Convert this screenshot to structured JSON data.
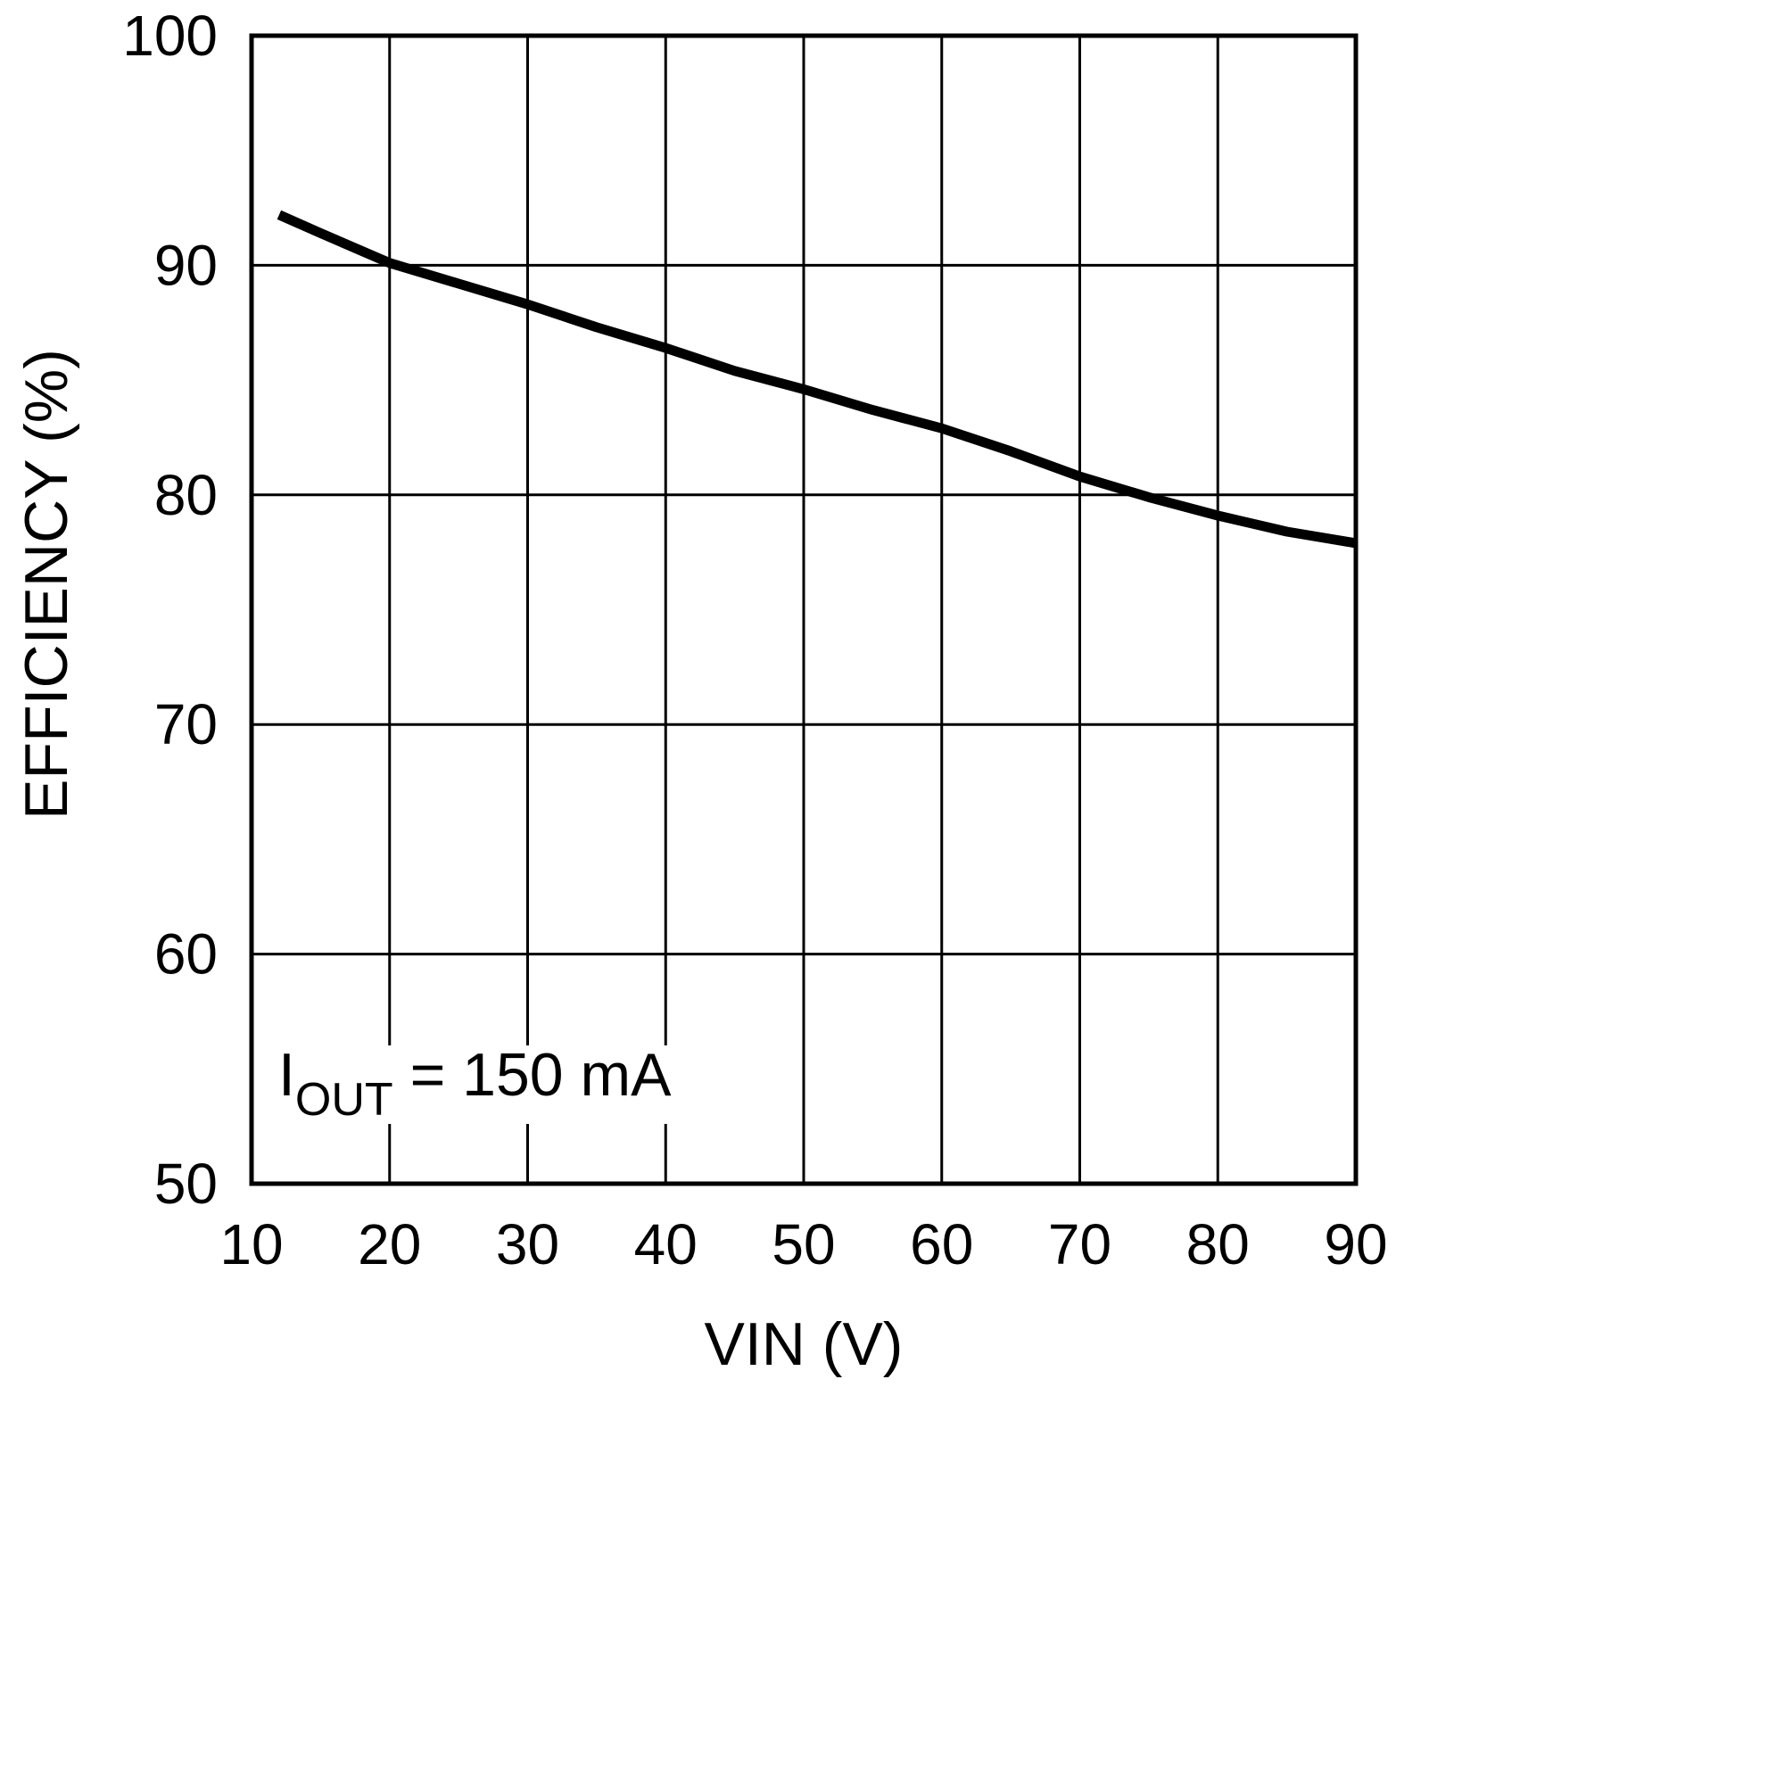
{
  "chart_data": {
    "type": "line",
    "title": "",
    "xlabel": "VIN (V)",
    "ylabel": "EFFICIENCY (%)",
    "xlim": [
      10,
      90
    ],
    "ylim": [
      50,
      100
    ],
    "xticks": [
      "10",
      "20",
      "30",
      "40",
      "50",
      "60",
      "70",
      "80",
      "90"
    ],
    "yticks": [
      "50",
      "60",
      "70",
      "80",
      "90",
      "100"
    ],
    "grid": true,
    "annotation": {
      "main": "I",
      "sub": "OUT",
      "rest": " = 150 mA"
    },
    "series": [
      {
        "color": "#000000",
        "x": [
          12,
          15,
          20,
          25,
          30,
          35,
          40,
          45,
          50,
          55,
          60,
          65,
          70,
          75,
          80,
          85,
          90
        ],
        "y": [
          92.2,
          91.4,
          90.1,
          89.2,
          88.3,
          87.3,
          86.4,
          85.4,
          84.6,
          83.7,
          82.9,
          81.9,
          80.8,
          79.9,
          79.1,
          78.4,
          77.9
        ]
      }
    ]
  }
}
